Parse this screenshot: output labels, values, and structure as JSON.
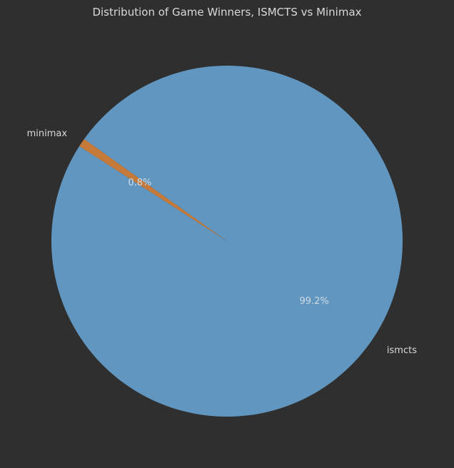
{
  "chart_data": {
    "type": "pie",
    "title": "Distribution of Game Winners, ISMCTS vs Minimax",
    "slices": [
      {
        "label": "ismcts",
        "value": 99.2,
        "pct_label": "99.2%",
        "color": "#6096bf"
      },
      {
        "label": "minimax",
        "value": 0.8,
        "pct_label": "0.8%",
        "color": "#c57a3a"
      }
    ],
    "background": "#2f2f2f",
    "text_color": "#d9d9d9"
  }
}
